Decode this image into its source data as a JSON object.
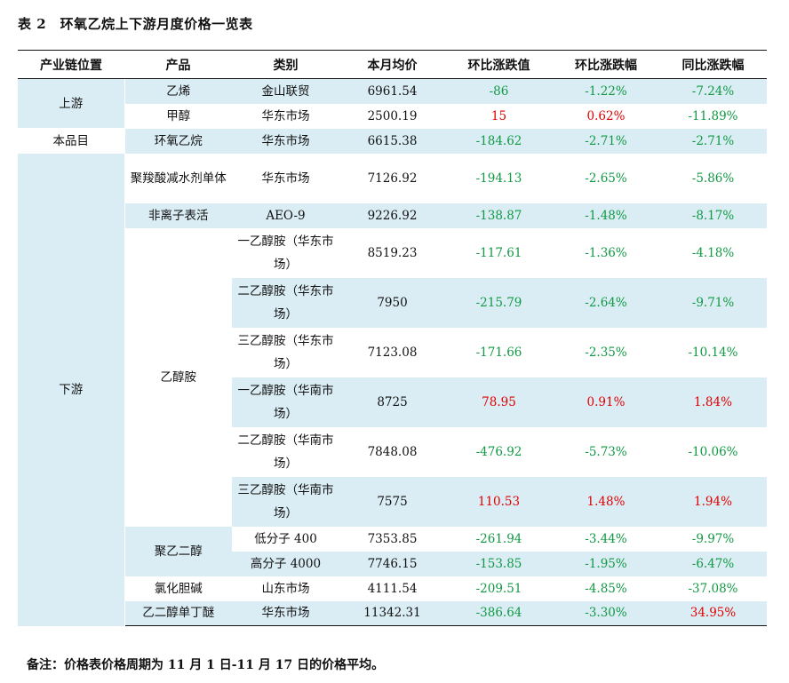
{
  "title": "表 2　环氧乙烷上下游月度价格一览表",
  "headers": [
    "产业链位置",
    "产品",
    "类别",
    "本月均价",
    "环比涨跌值",
    "环比涨跌幅",
    "同比涨跌幅"
  ],
  "positions": {
    "upstream": "上游",
    "self": "本品目",
    "downstream": "下游"
  },
  "products": {
    "ethylene": "乙烯",
    "methanol": "甲醇",
    "eo": "环氧乙烷",
    "pce": "聚羧酸减水剂单体",
    "nonionic": "非离子表活",
    "ethanolamine": "乙醇胺",
    "peg": "聚乙二醇",
    "choline": "氯化胆碱",
    "egbe": "乙二醇单丁醚"
  },
  "rows": [
    {
      "category": "金山联贸",
      "price": "6961.54",
      "mom_value": "-86",
      "mom_pct": "-1.22%",
      "yoy_pct": "-7.24%"
    },
    {
      "category": "华东市场",
      "price": "2500.19",
      "mom_value": "15",
      "mom_pct": "0.62%",
      "yoy_pct": "-11.89%"
    },
    {
      "category": "华东市场",
      "price": "6615.38",
      "mom_value": "-184.62",
      "mom_pct": "-2.71%",
      "yoy_pct": "-2.71%"
    },
    {
      "category": "华东市场",
      "price": "7126.92",
      "mom_value": "-194.13",
      "mom_pct": "-2.65%",
      "yoy_pct": "-5.86%"
    },
    {
      "category": "AEO-9",
      "price": "9226.92",
      "mom_value": "-138.87",
      "mom_pct": "-1.48%",
      "yoy_pct": "-8.17%"
    },
    {
      "category": "一乙醇胺（华东市场）",
      "price": "8519.23",
      "mom_value": "-117.61",
      "mom_pct": "-1.36%",
      "yoy_pct": "-4.18%"
    },
    {
      "category": "二乙醇胺（华东市场）",
      "price": "7950",
      "mom_value": "-215.79",
      "mom_pct": "-2.64%",
      "yoy_pct": "-9.71%"
    },
    {
      "category": "三乙醇胺（华东市场）",
      "price": "7123.08",
      "mom_value": "-171.66",
      "mom_pct": "-2.35%",
      "yoy_pct": "-10.14%"
    },
    {
      "category": "一乙醇胺（华南市场）",
      "price": "8725",
      "mom_value": "78.95",
      "mom_pct": "0.91%",
      "yoy_pct": "1.84%"
    },
    {
      "category": "二乙醇胺（华南市场）",
      "price": "7848.08",
      "mom_value": "-476.92",
      "mom_pct": "-5.73%",
      "yoy_pct": "-10.06%"
    },
    {
      "category": "三乙醇胺（华南市场）",
      "price": "7575",
      "mom_value": "110.53",
      "mom_pct": "1.48%",
      "yoy_pct": "1.94%"
    },
    {
      "category": "低分子 400",
      "price": "7353.85",
      "mom_value": "-261.94",
      "mom_pct": "-3.44%",
      "yoy_pct": "-9.97%"
    },
    {
      "category": "高分子 4000",
      "price": "7746.15",
      "mom_value": "-153.85",
      "mom_pct": "-1.95%",
      "yoy_pct": "-6.47%"
    },
    {
      "category": "山东市场",
      "price": "4111.54",
      "mom_value": "-209.51",
      "mom_pct": "-4.85%",
      "yoy_pct": "-37.08%"
    },
    {
      "category": "华东市场",
      "price": "11342.31",
      "mom_value": "-386.64",
      "mom_pct": "-3.30%",
      "yoy_pct": "34.95%"
    }
  ],
  "note": "备注：价格表价格周期为 11 月 1 日-11 月 17 日的价格平均。",
  "colors": {
    "rise": "#e00000",
    "fall": "#119944",
    "band": "#daedf4"
  }
}
